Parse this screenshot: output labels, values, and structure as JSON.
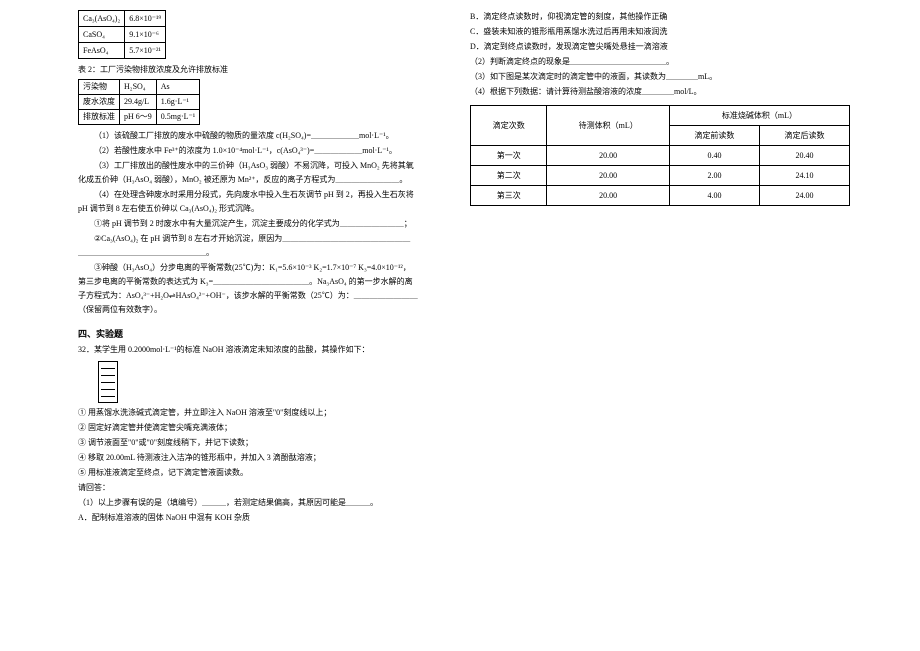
{
  "left": {
    "tbl1": {
      "rows": [
        [
          "Ca₃(AsO₄)₂",
          "6.8×10⁻¹⁹"
        ],
        [
          "CaSO₄",
          "9.1×10⁻⁶"
        ],
        [
          "FeAsO₄",
          "5.7×10⁻²¹"
        ]
      ]
    },
    "caption2": "表 2：工厂污染物排放浓度及允许排放标准",
    "tbl2": {
      "head": [
        "污染物",
        "H₂SO₄",
        "As"
      ],
      "rows": [
        [
          "废水浓度",
          "29.4g/L",
          "1.6g·L⁻¹"
        ],
        [
          "排放标准",
          "pH 6～9",
          "0.5mg·L⁻¹"
        ]
      ]
    },
    "p1": "（1）该硫酸工厂排放的废水中硫酸的物质的量浓度 c(H₂SO₄)=＿＿＿＿＿＿mol·L⁻¹。",
    "p2": "（2）若酸性废水中 Fe³⁺的浓度为 1.0×10⁻⁴mol·L⁻¹，c(AsO₄³⁻)=＿＿＿＿＿＿mol·L⁻¹。",
    "p3": "（3）工厂排放出的酸性废水中的三价砷（H₃AsO₃ 弱酸）不易沉降，可投入 MnO₂ 先将其氧化成五价砷（H₃AsO₄ 弱酸），MnO₂ 被还原为 Mn²⁺，反应的离子方程式为＿＿＿＿＿＿＿＿。",
    "p4": "（4）在处理含砷废水时采用分段式，先向废水中投入生石灰调节 pH 到 2，再投入生石灰将 pH 调节到 8 左右使五价砷以 Ca₃(AsO₄)₂ 形式沉降。",
    "p4a": "①将 pH 调节到 2 时废水中有大量沉淀产生，沉淀主要成分的化学式为＿＿＿＿＿＿＿＿；",
    "p4b": "②Ca₃(AsO₄)₂ 在 pH 调节到 8 左右才开始沉淀，原因为＿＿＿＿＿＿＿＿＿＿＿＿＿＿＿＿＿＿＿＿＿＿＿＿＿＿＿＿＿＿＿＿。",
    "p4c": "③砷酸（H₃AsO₄）分步电离的平衡常数(25℃)为：K₁=5.6×10⁻³  K₂=1.7×10⁻⁷  K₃=4.0×10⁻¹²，第三步电离的平衡常数的表达式为 K₃=＿＿＿＿＿＿＿＿＿＿＿＿。Na₃AsO₄ 的第一步水解的离子方程式为：AsO₄³⁻+H₂O⇌HAsO₄²⁻+OH⁻，该步水解的平衡常数（25℃）为：＿＿＿＿＿＿＿＿（保留两位有效数字）。",
    "sec4": "四、实验题",
    "q32": "32．某学生用 0.2000mol·L⁻¹的标准 NaOH 溶液滴定未知浓度的盐酸，其操作如下：",
    "steps": [
      "① 用蒸馏水洗涤碱式滴定管，并立即注入 NaOH 溶液至\"0\"刻度线以上；",
      "② 固定好滴定管并使滴定管尖嘴充满液体；",
      "③ 调节液面至\"0\"或\"0\"刻度线稍下，并记下读数；",
      "④ 移取 20.00mL 待测液注入洁净的锥形瓶中，并加入 3 滴酚酞溶液；",
      "⑤ 用标准液滴定至终点，记下滴定管液面读数。"
    ],
    "ask": "请回答：",
    "q1": "（1）以上步骤有误的是（填编号）＿＿＿，若测定结果偏高，其原因可能是＿＿＿。",
    "optA": "A．配制标准溶液的固体 NaOH 中混有 KOH 杂质"
  },
  "right": {
    "optB": "B．滴定终点读数时，仰视滴定管的刻度，其他操作正确",
    "optC": "C．盛装未知液的锥形瓶用蒸馏水洗过后再用未知液润洗",
    "optD": "D．滴定到终点读数时，发现滴定管尖嘴处悬挂一滴溶液",
    "q2": "（2）判断滴定终点的现象是＿＿＿＿＿＿＿＿＿＿＿＿。",
    "q3": "（3）如下图是某次滴定时的滴定管中的液面，其读数为＿＿＿＿mL。",
    "q4": "（4）根据下列数据：请计算待测盐酸溶液的浓度＿＿＿＿mol/L。",
    "table": {
      "head1": [
        "滴定次数",
        "待测体积（mL）",
        "标准烧碱体积（mL）"
      ],
      "head2": [
        "滴定前读数",
        "滴定后读数"
      ],
      "rows": [
        [
          "第一次",
          "20.00",
          "0.40",
          "20.40"
        ],
        [
          "第二次",
          "20.00",
          "2.00",
          "24.10"
        ],
        [
          "第三次",
          "20.00",
          "4.00",
          "24.00"
        ]
      ]
    }
  }
}
